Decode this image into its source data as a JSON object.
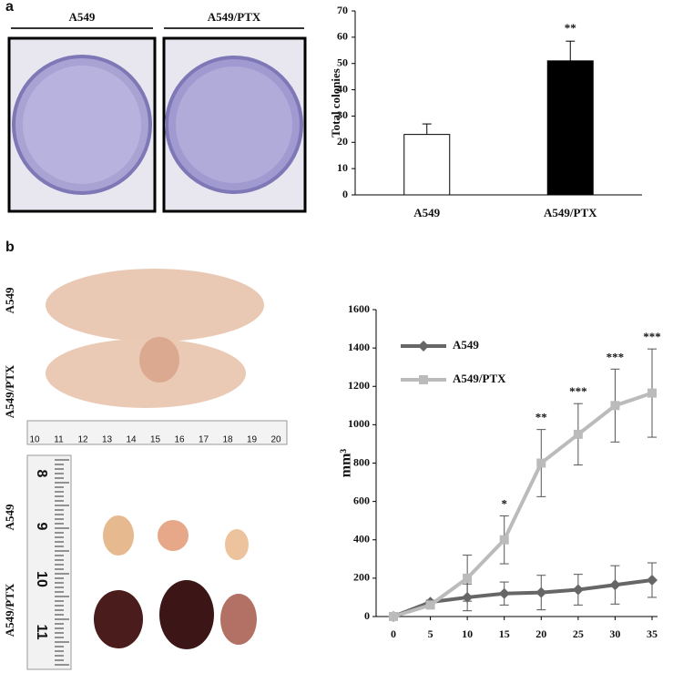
{
  "panel_labels": [
    "a",
    "b"
  ],
  "plates": {
    "labels": [
      "A549",
      "A549/PTX"
    ]
  },
  "mice": {
    "labels": [
      "A549",
      "A549/PTX"
    ],
    "ruler": [
      "10",
      "11",
      "12",
      "13",
      "14",
      "15",
      "16",
      "17",
      "18",
      "19",
      "20"
    ]
  },
  "tumors": {
    "labels": [
      "A549",
      "A549/PTX"
    ],
    "ruler": [
      "8",
      "9",
      "10",
      "11"
    ]
  },
  "chart_data": [
    {
      "type": "bar",
      "ylabel": "Total colonies",
      "categories": [
        "A549",
        "A549/PTX"
      ],
      "values": [
        23,
        51
      ],
      "errors": [
        4,
        7.5
      ],
      "colors": [
        "#ffffff",
        "#000000"
      ],
      "significance": [
        null,
        "**"
      ],
      "ylim": [
        0,
        70
      ],
      "yticks": [
        0,
        10,
        20,
        30,
        40,
        50,
        60,
        70
      ]
    },
    {
      "type": "line",
      "ylabel": "mm³",
      "x": [
        0,
        5,
        10,
        15,
        20,
        25,
        30,
        35
      ],
      "series": [
        {
          "name": "A549",
          "color": "#666666",
          "marker": "diamond",
          "values": [
            0,
            75,
            100,
            120,
            125,
            140,
            165,
            190
          ],
          "errors": [
            0,
            10,
            70,
            60,
            90,
            80,
            100,
            90
          ]
        },
        {
          "name": "A549/PTX",
          "color": "#bbbbbb",
          "marker": "square",
          "values": [
            0,
            60,
            200,
            400,
            800,
            950,
            1100,
            1165
          ],
          "errors": [
            0,
            10,
            120,
            125,
            175,
            160,
            190,
            230
          ]
        }
      ],
      "significance": [
        null,
        null,
        null,
        "*",
        "**",
        "***",
        "***",
        "***"
      ],
      "xlim": [
        0,
        35
      ],
      "xticks": [
        0,
        5,
        10,
        15,
        20,
        25,
        30,
        35
      ],
      "ylim": [
        0,
        1600
      ],
      "yticks": [
        0,
        200,
        400,
        600,
        800,
        1000,
        1200,
        1400,
        1600
      ],
      "legend": "upper left"
    }
  ]
}
